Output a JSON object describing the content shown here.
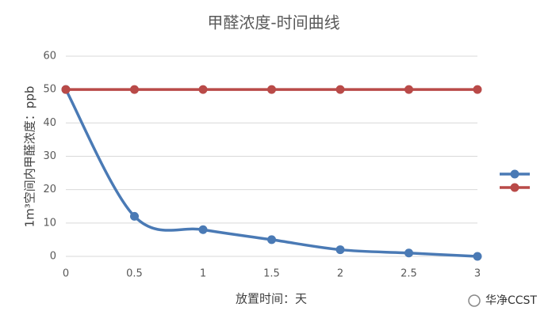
{
  "chart_data": {
    "type": "line",
    "title": "甲醛浓度-时间曲线",
    "x_label": "放置时间：天",
    "y_label": "1m³空间内甲醛浓度：ppb",
    "x": [
      0,
      0.5,
      1,
      1.5,
      2,
      2.5,
      3
    ],
    "series": [
      {
        "color": "#4a7ab5",
        "values": [
          50,
          12,
          8,
          5,
          2,
          1,
          0
        ]
      },
      {
        "color": "#b94a48",
        "values": [
          50,
          50,
          50,
          50,
          50,
          50,
          50
        ]
      }
    ],
    "xlim": [
      0,
      3
    ],
    "xticks": [
      0,
      0.5,
      1,
      1.5,
      2,
      2.5,
      3
    ],
    "ylim": [
      0,
      60
    ],
    "yticks": [
      0,
      10,
      20,
      30,
      40,
      50,
      60
    ],
    "grid": true,
    "legend": "right",
    "smooth": true,
    "watermark": "华净CCST"
  }
}
